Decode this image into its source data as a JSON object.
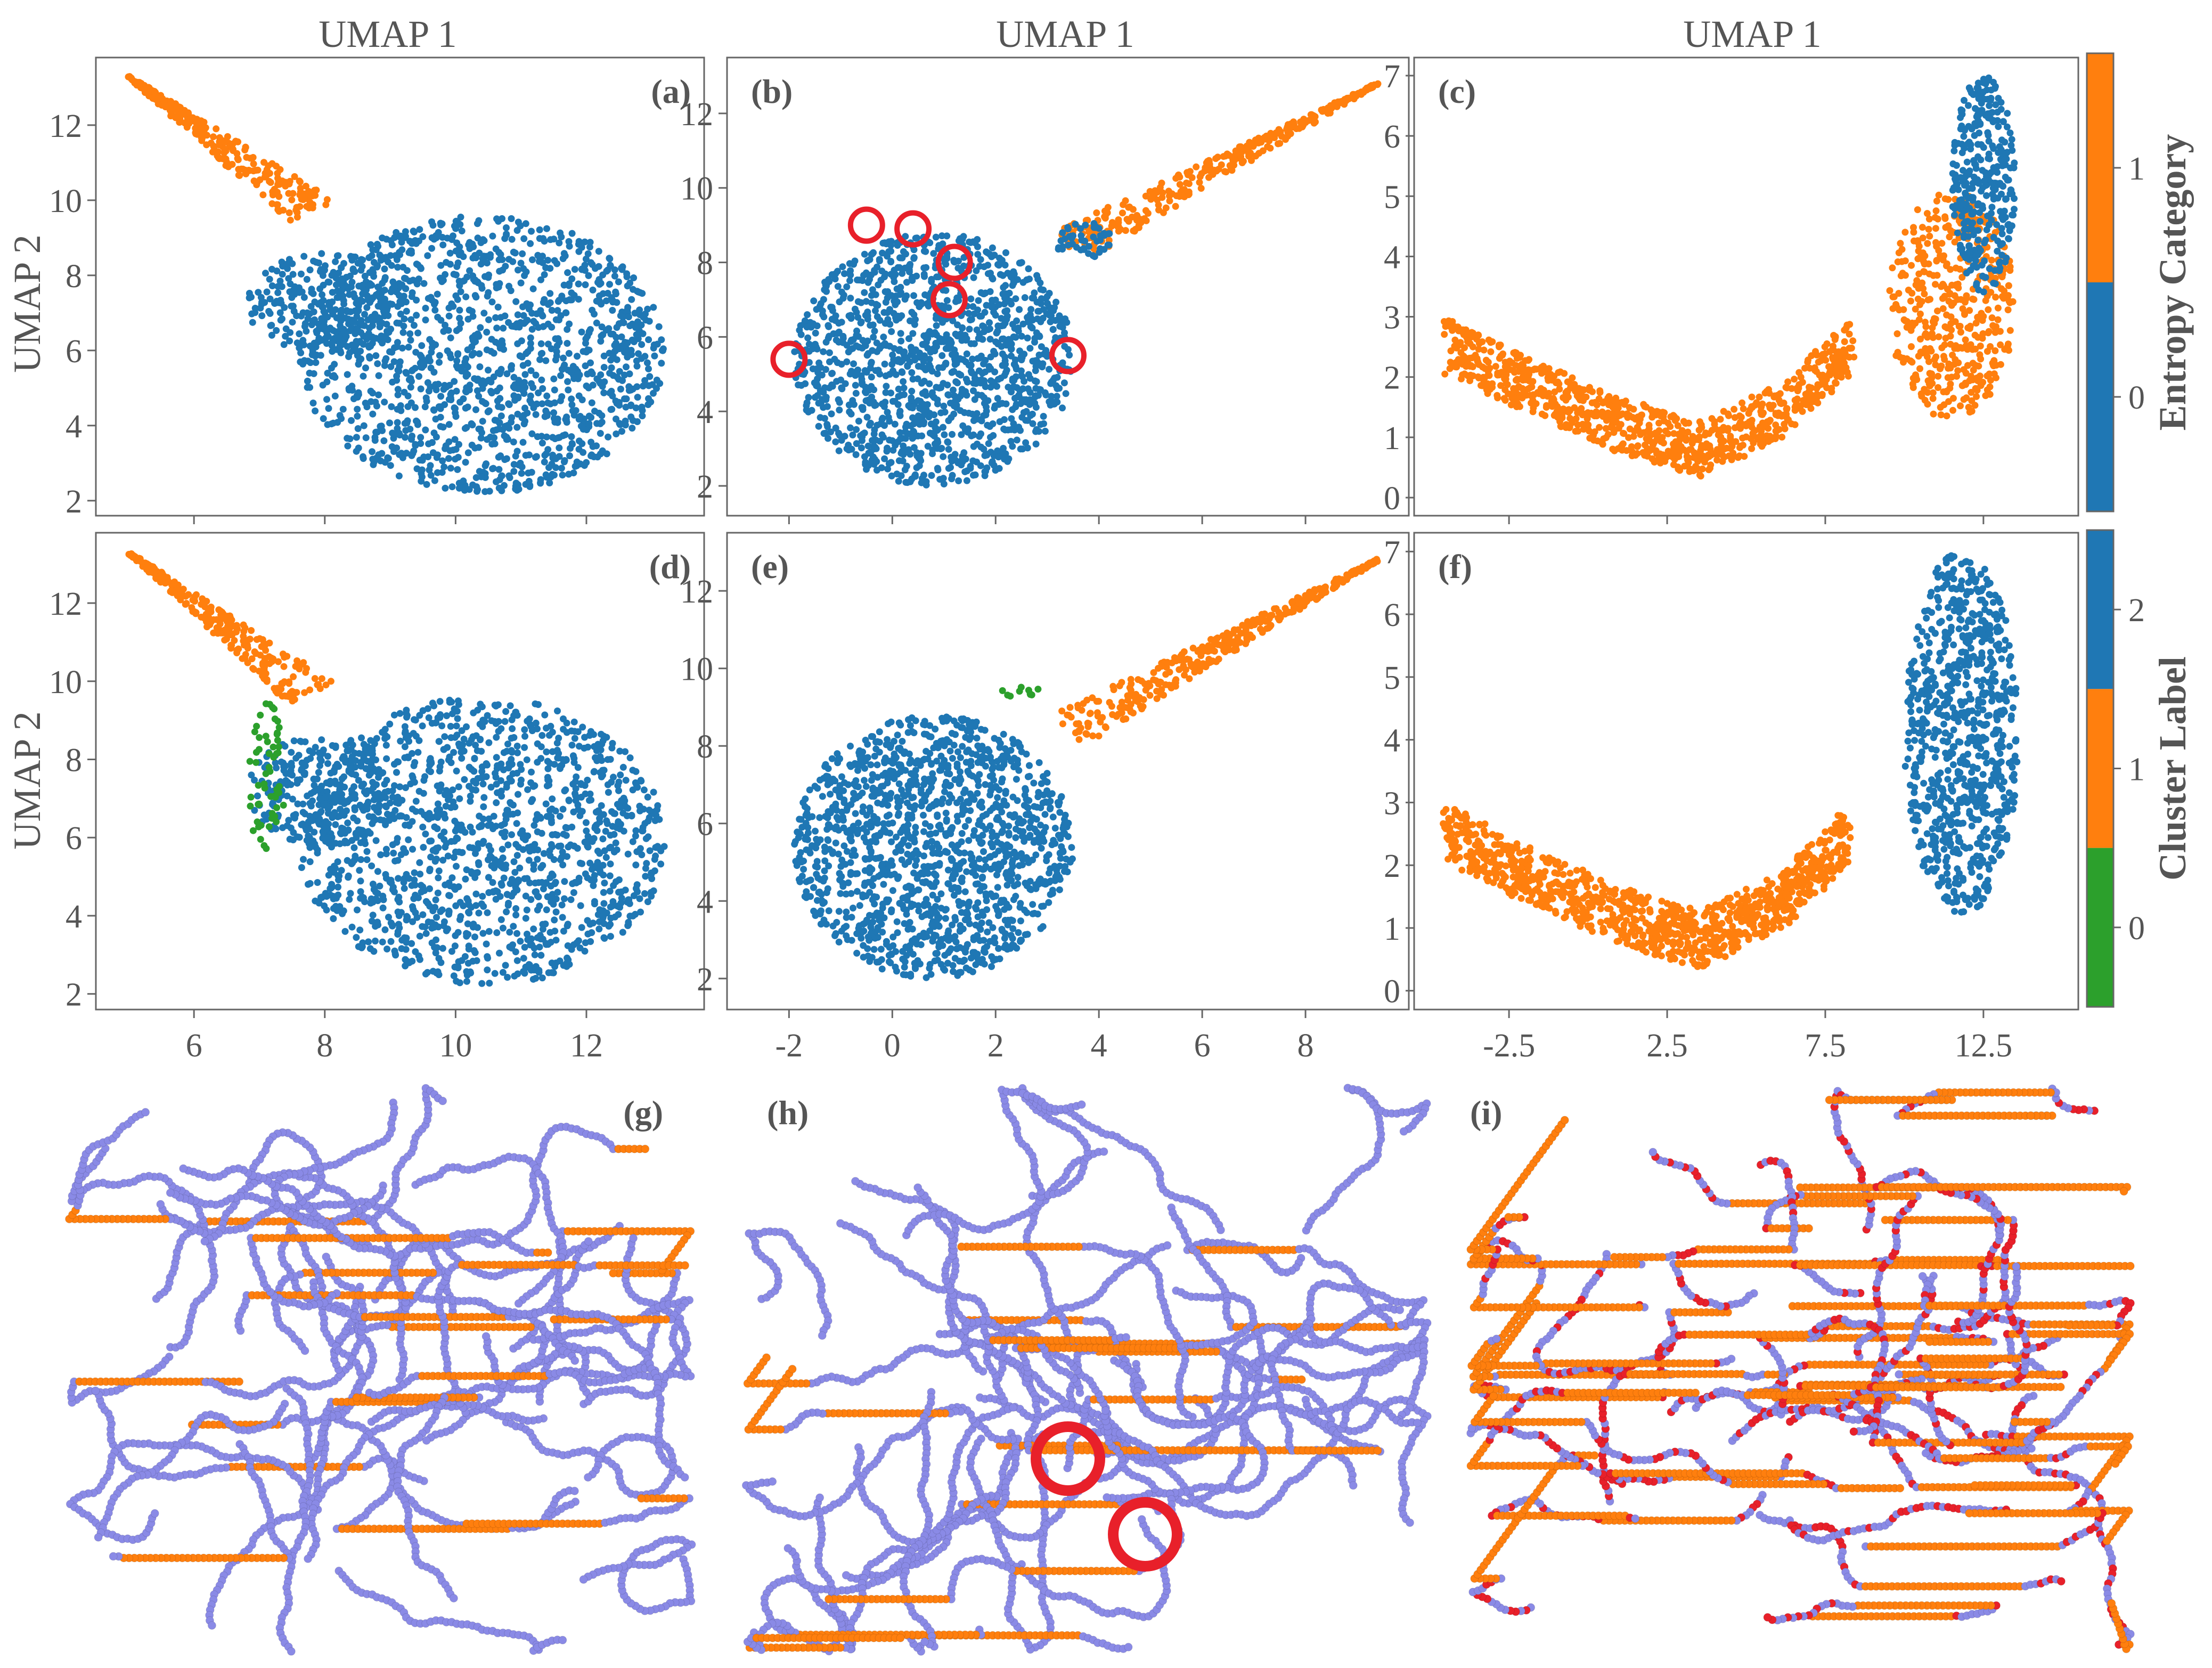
{
  "figure": {
    "column_titles": [
      "UMAP 1",
      "UMAP 1",
      "UMAP 1"
    ],
    "row_ylabels": [
      "UMAP 2",
      "UMAP 2"
    ]
  },
  "colors": {
    "blue": "#1f77b4",
    "orange": "#ff7f0e",
    "green": "#2ca02c",
    "red": "#e8202a",
    "chain": "#8a8ae6"
  },
  "colorbars": [
    {
      "title": "Entropy Category",
      "labels": [
        "1",
        "0"
      ],
      "segments": [
        "orange",
        "blue"
      ]
    },
    {
      "title": "Cluster Label",
      "labels": [
        "2",
        "1",
        "0"
      ],
      "segments": [
        "blue",
        "orange",
        "green"
      ]
    }
  ],
  "chart_data": [
    {
      "id": "a",
      "label": "(a)",
      "type": "scatter",
      "coloring": "entropy_category",
      "xlim": [
        4.5,
        13.8
      ],
      "ylim": [
        1.6,
        13.8
      ],
      "xticks": [
        6,
        8,
        10,
        12
      ],
      "xtick_labels": [],
      "yticks": [
        2,
        4,
        6,
        8,
        10,
        12
      ],
      "ytick_labels": [
        "2",
        "4",
        "6",
        "8",
        "10",
        "12"
      ],
      "clusters": [
        {
          "category": "0",
          "shape": "ellipse",
          "center": [
            10.4,
            5.9
          ],
          "radii": [
            2.8,
            3.7
          ],
          "n": 1400
        },
        {
          "category": "0",
          "shape": "ellipse",
          "center": [
            8.0,
            7.2
          ],
          "radii": [
            1.2,
            1.4
          ],
          "n": 250
        },
        {
          "category": "1",
          "shape": "tail",
          "from": [
            5.0,
            13.3
          ],
          "to": [
            7.8,
            9.7
          ],
          "width": [
            0.05,
            0.9
          ],
          "n": 260
        }
      ]
    },
    {
      "id": "b",
      "label": "(b)",
      "type": "scatter",
      "coloring": "entropy_category",
      "xlim": [
        -3.2,
        10.0
      ],
      "ylim": [
        1.2,
        13.5
      ],
      "xticks": [
        -2,
        0,
        2,
        4,
        6,
        8
      ],
      "xtick_labels": [],
      "yticks": [
        2,
        4,
        6,
        8,
        10,
        12
      ],
      "ytick_labels": [
        "2",
        "4",
        "6",
        "8",
        "10",
        "12"
      ],
      "clusters": [
        {
          "category": "0",
          "shape": "ellipse",
          "center": [
            0.8,
            5.4
          ],
          "radii": [
            2.7,
            3.4
          ],
          "n": 1350
        },
        {
          "category": "1",
          "shape": "tail",
          "from": [
            9.4,
            12.8
          ],
          "to": [
            3.4,
            8.4
          ],
          "width": [
            0.05,
            1.0
          ],
          "n": 320
        },
        {
          "category": "0",
          "shape": "ellipse",
          "center": [
            3.7,
            8.6
          ],
          "radii": [
            0.6,
            0.5
          ],
          "n": 50
        }
      ],
      "highlight_circles": [
        [
          -0.5,
          9.0
        ],
        [
          0.4,
          8.9
        ],
        [
          1.2,
          8.0
        ],
        [
          1.1,
          7.0
        ],
        [
          -2.0,
          5.4
        ],
        [
          3.4,
          5.5
        ]
      ]
    },
    {
      "id": "c",
      "label": "(c)",
      "type": "scatter",
      "coloring": "entropy_category",
      "xlim": [
        -5.5,
        15.5
      ],
      "ylim": [
        -0.3,
        7.3
      ],
      "xticks": [
        -2.5,
        2.5,
        7.5,
        12.5
      ],
      "xtick_labels": [],
      "yticks": [
        0,
        1,
        2,
        3,
        4,
        5,
        6,
        7
      ],
      "ytick_labels": [
        "0",
        "1",
        "2",
        "3",
        "4",
        "5",
        "6",
        "7"
      ],
      "clusters": [
        {
          "category": "1",
          "shape": "path",
          "points": [
            [
              -4.5,
              2.5
            ],
            [
              -2,
              1.9
            ],
            [
              1,
              1.2
            ],
            [
              3.5,
              0.8
            ],
            [
              6,
              1.4
            ],
            [
              8.3,
              2.5
            ]
          ],
          "width": 0.9,
          "n": 900
        },
        {
          "category": "1",
          "shape": "ellipse",
          "center": [
            11.5,
            3.2
          ],
          "radii": [
            2.0,
            1.9
          ],
          "n": 450
        },
        {
          "category": "0",
          "shape": "ellipse",
          "center": [
            12.5,
            5.2
          ],
          "radii": [
            1.0,
            1.8
          ],
          "n": 330
        }
      ]
    },
    {
      "id": "d",
      "label": "(d)",
      "type": "scatter",
      "coloring": "cluster_label",
      "xlim": [
        4.5,
        13.8
      ],
      "ylim": [
        1.6,
        13.8
      ],
      "xticks": [
        6,
        8,
        10,
        12
      ],
      "xtick_labels": [
        "6",
        "8",
        "10",
        "12"
      ],
      "yticks": [
        2,
        4,
        6,
        8,
        10,
        12
      ],
      "ytick_labels": [
        "2",
        "4",
        "6",
        "8",
        "10",
        "12"
      ],
      "clusters": [
        {
          "category": "2",
          "shape": "ellipse",
          "center": [
            10.4,
            5.9
          ],
          "radii": [
            2.8,
            3.7
          ],
          "n": 1400
        },
        {
          "category": "2",
          "shape": "ellipse",
          "center": [
            8.0,
            7.2
          ],
          "radii": [
            1.2,
            1.4
          ],
          "n": 250
        },
        {
          "category": "1",
          "shape": "tail",
          "from": [
            5.0,
            13.3
          ],
          "to": [
            7.8,
            9.7
          ],
          "width": [
            0.05,
            0.9
          ],
          "n": 260
        },
        {
          "category": "0",
          "shape": "ellipse",
          "center": [
            7.1,
            7.6
          ],
          "radii": [
            0.3,
            1.9
          ],
          "n": 60
        }
      ]
    },
    {
      "id": "e",
      "label": "(e)",
      "type": "scatter",
      "coloring": "cluster_label",
      "xlim": [
        -3.2,
        10.0
      ],
      "ylim": [
        1.2,
        13.5
      ],
      "xticks": [
        -2,
        0,
        2,
        4,
        6,
        8
      ],
      "xtick_labels": [
        "-2",
        "0",
        "2",
        "4",
        "6",
        "8"
      ],
      "yticks": [
        2,
        4,
        6,
        8,
        10,
        12
      ],
      "ytick_labels": [
        "2",
        "4",
        "6",
        "8",
        "10",
        "12"
      ],
      "clusters": [
        {
          "category": "2",
          "shape": "ellipse",
          "center": [
            0.8,
            5.4
          ],
          "radii": [
            2.7,
            3.4
          ],
          "n": 1400
        },
        {
          "category": "1",
          "shape": "tail",
          "from": [
            9.4,
            12.8
          ],
          "to": [
            3.4,
            8.4
          ],
          "width": [
            0.05,
            1.0
          ],
          "n": 340
        },
        {
          "category": "0",
          "shape": "ellipse",
          "center": [
            2.5,
            9.4
          ],
          "radii": [
            0.4,
            0.15
          ],
          "n": 10
        }
      ]
    },
    {
      "id": "f",
      "label": "(f)",
      "type": "scatter",
      "coloring": "cluster_label",
      "xlim": [
        -5.5,
        15.5
      ],
      "ylim": [
        -0.3,
        7.3
      ],
      "xticks": [
        -2.5,
        2.5,
        7.5,
        12.5
      ],
      "xtick_labels": [
        "-2.5",
        "2.5",
        "7.5",
        "12.5"
      ],
      "yticks": [
        0,
        1,
        2,
        3,
        4,
        5,
        6,
        7
      ],
      "ytick_labels": [
        "0",
        "1",
        "2",
        "3",
        "4",
        "5",
        "6",
        "7"
      ],
      "clusters": [
        {
          "category": "1",
          "shape": "path",
          "points": [
            [
              -4.5,
              2.5
            ],
            [
              -2,
              1.9
            ],
            [
              1,
              1.2
            ],
            [
              3.5,
              0.8
            ],
            [
              6,
              1.4
            ],
            [
              8.3,
              2.5
            ]
          ],
          "width": 0.9,
          "n": 1000
        },
        {
          "category": "2",
          "shape": "ellipse",
          "center": [
            11.8,
            4.1
          ],
          "radii": [
            1.8,
            2.9
          ],
          "n": 800
        }
      ]
    }
  ],
  "snapshots": [
    {
      "id": "g",
      "label": "(g)",
      "chains": 45,
      "orange_fraction": 0.12,
      "red_fraction": 0.0
    },
    {
      "id": "h",
      "label": "(h)",
      "chains": 45,
      "orange_fraction": 0.2,
      "red_fraction": 0.0,
      "highlight_circles": 2
    },
    {
      "id": "i",
      "label": "(i)",
      "chains": 45,
      "orange_fraction": 0.5,
      "red_fraction": 0.35
    }
  ]
}
